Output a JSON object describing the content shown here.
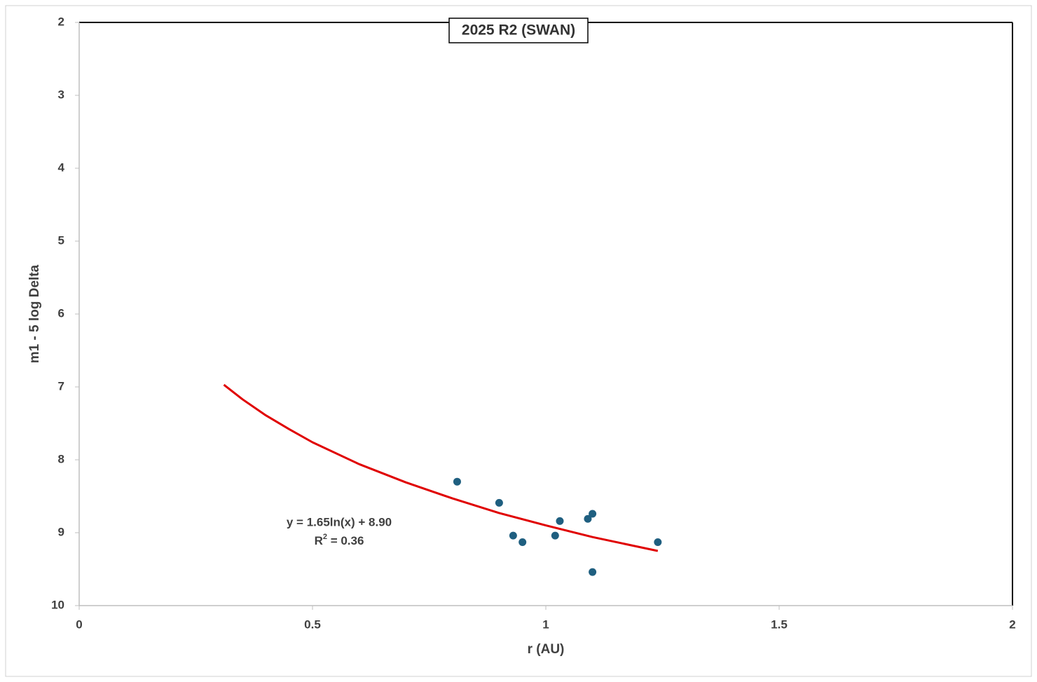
{
  "chart_data": {
    "type": "scatter",
    "title": "2025 R2 (SWAN)",
    "x_label": "r (AU)",
    "y_label": "m1 - 5 log Delta",
    "xlim": [
      0,
      2
    ],
    "xticks": [
      0,
      0.5,
      1,
      1.5,
      2
    ],
    "ylim": [
      10,
      2
    ],
    "yticks": [
      2,
      3,
      4,
      5,
      6,
      7,
      8,
      9,
      10
    ],
    "series": [
      {
        "color": "#1f5f80",
        "x": [
          0.81,
          0.9,
          0.93,
          0.95,
          1.02,
          1.03,
          1.09,
          1.1,
          1.1,
          1.24
        ],
        "values": [
          8.3,
          8.59,
          9.04,
          9.13,
          9.04,
          8.84,
          8.81,
          8.74,
          9.54,
          9.13
        ]
      }
    ],
    "trendline": {
      "color": "#e00000",
      "x": [
        0.31,
        0.35,
        0.4,
        0.45,
        0.5,
        0.6,
        0.7,
        0.8,
        0.9,
        1.0,
        1.1,
        1.24
      ],
      "values": [
        6.97,
        7.17,
        7.39,
        7.58,
        7.76,
        8.06,
        8.31,
        8.53,
        8.73,
        8.9,
        9.06,
        9.25
      ],
      "equation": "y = 1.65ln(x) + 8.90",
      "r2_base": "R",
      "r2_sup": "2",
      "r2_rest": " = 0.36"
    }
  }
}
